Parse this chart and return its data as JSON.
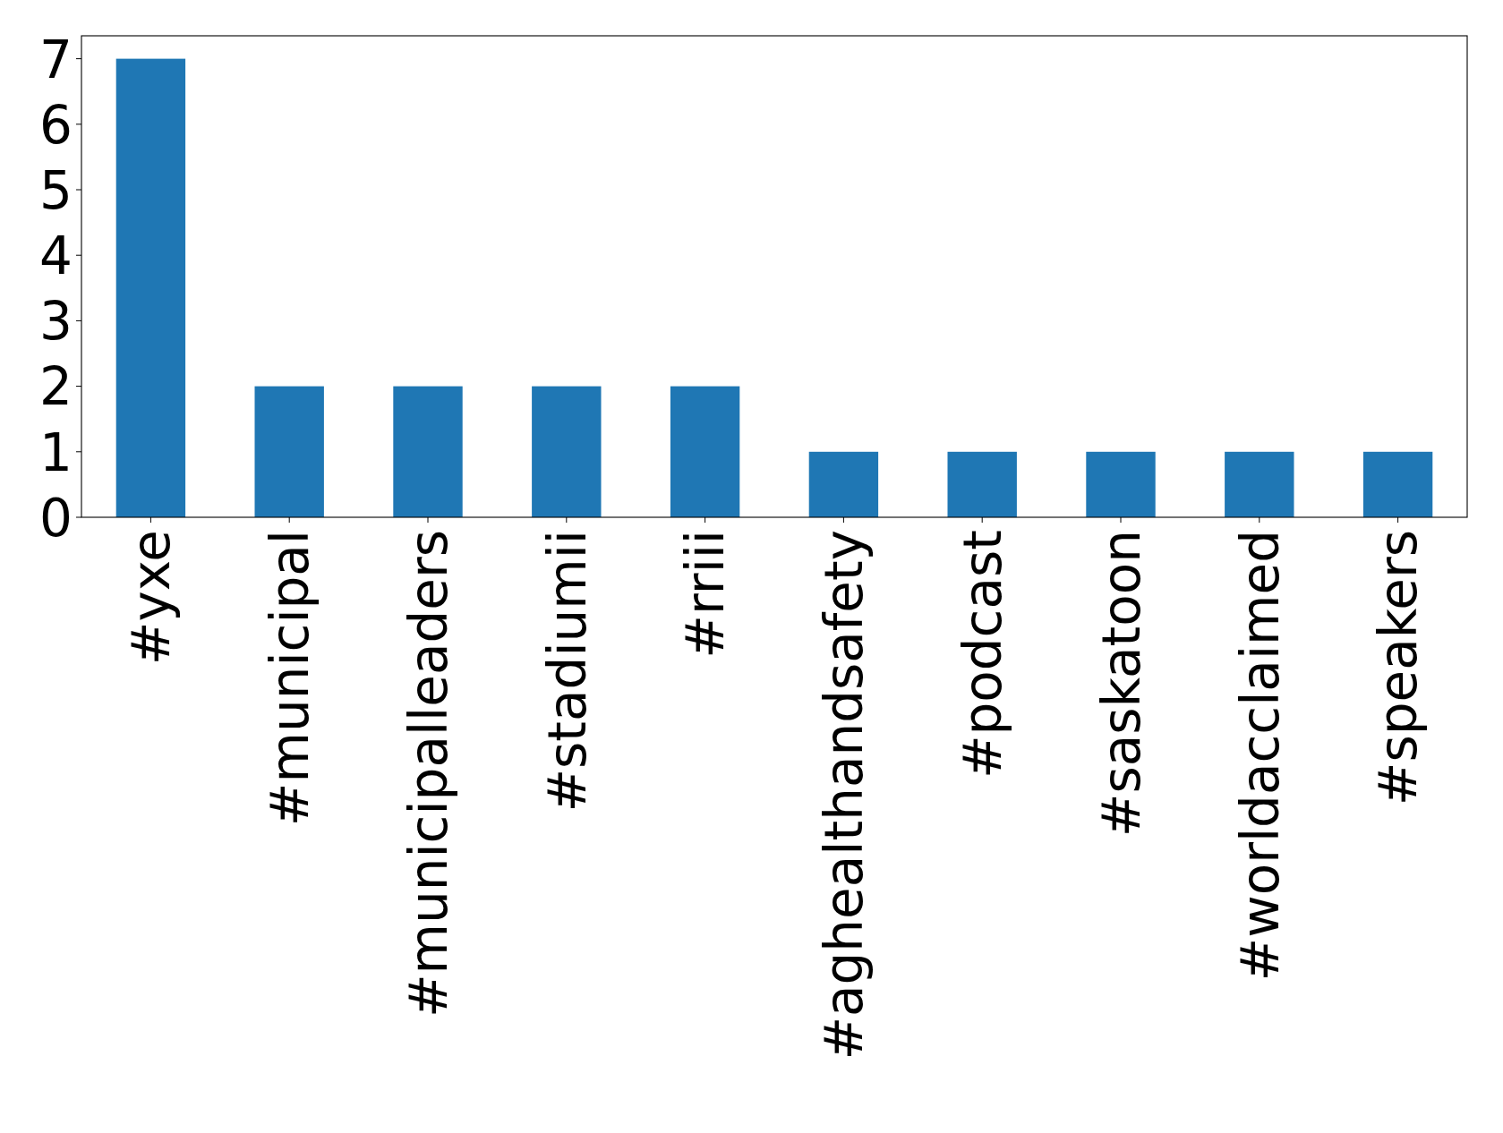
{
  "chart_data": {
    "type": "bar",
    "categories": [
      "#yxe",
      "#municipal",
      "#municipalleaders",
      "#stadiumii",
      "#rriii",
      "#aghealthandsafety",
      "#podcast",
      "#saskatoon",
      "#worldacclaimed",
      "#speakers"
    ],
    "values": [
      7,
      2,
      2,
      2,
      2,
      1,
      1,
      1,
      1,
      1
    ],
    "color": "#1f77b4",
    "ylim": [
      0,
      7.35
    ],
    "yticks": [
      0,
      1,
      2,
      3,
      4,
      5,
      6,
      7
    ],
    "grid": false
  }
}
